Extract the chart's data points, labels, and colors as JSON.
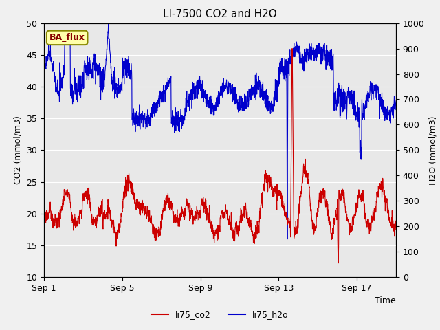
{
  "title": "LI-7500 CO2 and H2O",
  "xlabel": "Time",
  "ylabel_left": "CO2 (mmol/m3)",
  "ylabel_right": "H2O (mmol/m3)",
  "ylim_left": [
    10,
    50
  ],
  "ylim_right": [
    0,
    1000
  ],
  "yticks_left": [
    10,
    15,
    20,
    25,
    30,
    35,
    40,
    45,
    50
  ],
  "yticks_right": [
    0,
    100,
    200,
    300,
    400,
    500,
    600,
    700,
    800,
    900,
    1000
  ],
  "xtick_labels": [
    "Sep 1",
    "Sep 5",
    "Sep 9",
    "Sep 13",
    "Sep 17"
  ],
  "xtick_positions": [
    0,
    4,
    8,
    12,
    16
  ],
  "ba_flux_label": "BA_flux",
  "legend_labels": [
    "li75_co2",
    "li75_h2o"
  ],
  "co2_color": "#cc0000",
  "h2o_color": "#0000cc",
  "plot_bg_color": "#e8e8e8",
  "fig_bg_color": "#f0f0f0",
  "title_fontsize": 11,
  "axis_label_fontsize": 9,
  "tick_fontsize": 9,
  "ba_flux_bg": "#ffffaa",
  "ba_flux_border": "#888800",
  "ba_flux_text_color": "#880000",
  "grid_color": "#ffffff",
  "linewidth": 0.8
}
